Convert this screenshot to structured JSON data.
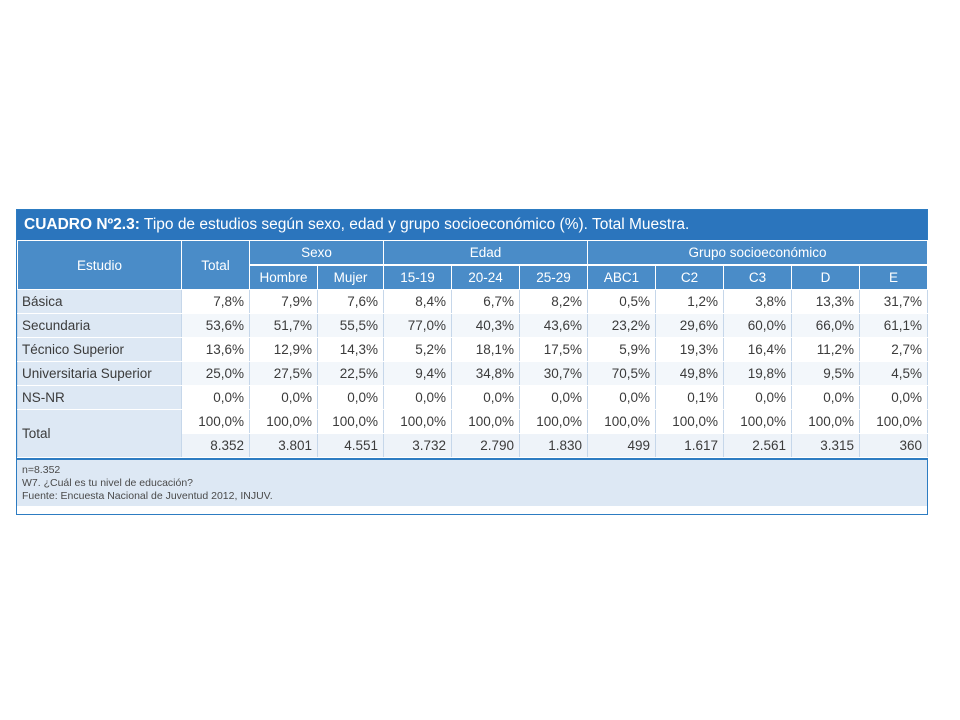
{
  "title": {
    "prefix": "CUADRO Nº2.3:",
    "text": " Tipo de estudios según sexo, edad y grupo socioeconómico (%). Total Muestra."
  },
  "header": {
    "estudio": "Estudio",
    "total": "Total",
    "groups": {
      "sexo": "Sexo",
      "edad": "Edad",
      "gse": "Grupo socioeconómico"
    },
    "columns": [
      "Hombre",
      "Mujer",
      "15-19",
      "20-24",
      "25-29",
      "ABC1",
      "C2",
      "C3",
      "D",
      "E"
    ]
  },
  "rows": [
    {
      "label": "Básica",
      "values": [
        "7,8%",
        "7,9%",
        "7,6%",
        "8,4%",
        "6,7%",
        "8,2%",
        "0,5%",
        "1,2%",
        "3,8%",
        "13,3%",
        "31,7%"
      ]
    },
    {
      "label": "Secundaria",
      "values": [
        "53,6%",
        "51,7%",
        "55,5%",
        "77,0%",
        "40,3%",
        "43,6%",
        "23,2%",
        "29,6%",
        "60,0%",
        "66,0%",
        "61,1%"
      ]
    },
    {
      "label": "Técnico Superior",
      "values": [
        "13,6%",
        "12,9%",
        "14,3%",
        "5,2%",
        "18,1%",
        "17,5%",
        "5,9%",
        "19,3%",
        "16,4%",
        "11,2%",
        "2,7%"
      ]
    },
    {
      "label": "Universitaria Superior",
      "values": [
        "25,0%",
        "27,5%",
        "22,5%",
        "9,4%",
        "34,8%",
        "30,7%",
        "70,5%",
        "49,8%",
        "19,8%",
        "9,5%",
        "4,5%"
      ]
    },
    {
      "label": "NS-NR",
      "values": [
        "0,0%",
        "0,0%",
        "0,0%",
        "0,0%",
        "0,0%",
        "0,0%",
        "0,0%",
        "0,1%",
        "0,0%",
        "0,0%",
        "0,0%"
      ]
    }
  ],
  "total_row": {
    "label": "Total",
    "percent": [
      "100,0%",
      "100,0%",
      "100,0%",
      "100,0%",
      "100,0%",
      "100,0%",
      "100,0%",
      "100,0%",
      "100,0%",
      "100,0%",
      "100,0%"
    ],
    "counts": [
      "8.352",
      "3.801",
      "4.551",
      "3.732",
      "2.790",
      "1.830",
      "499",
      "1.617",
      "2.561",
      "3.315",
      "360"
    ]
  },
  "notes": [
    "n=8.352",
    "W7. ¿Cuál es tu nivel de educación?",
    "Fuente: Encuesta Nacional de Juventud 2012, INJUV."
  ],
  "colors": {
    "title_bg": "#2b75bd",
    "header_bg": "#4a8cc8",
    "label_bg": "#dde8f4",
    "border": "#2d7cc2"
  }
}
